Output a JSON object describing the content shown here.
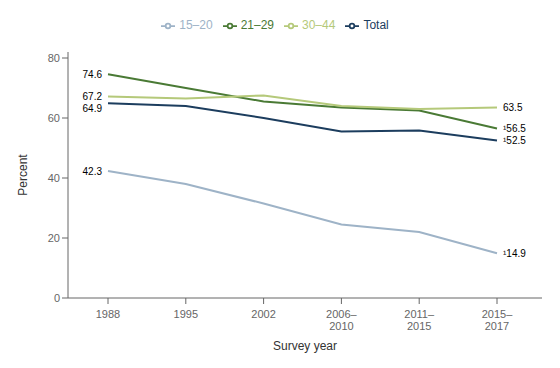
{
  "chart_data": {
    "type": "line",
    "categories": [
      "1988",
      "1995",
      "2002",
      "2006–\n2010",
      "2011–\n2015",
      "2015–\n2017"
    ],
    "series": [
      {
        "name": "Total",
        "color": "#1c3d5e",
        "values": [
          64.9,
          64.0,
          60.0,
          55.5,
          55.8,
          52.5
        ]
      },
      {
        "name": "15–20",
        "color": "#9eb3c7",
        "values": [
          42.3,
          38.0,
          31.5,
          24.5,
          22.0,
          14.9
        ]
      },
      {
        "name": "21–29",
        "color": "#4a7a35",
        "values": [
          74.6,
          70.0,
          65.5,
          63.5,
          62.5,
          56.5
        ]
      },
      {
        "name": "30–44",
        "color": "#b5c97a",
        "values": [
          67.2,
          66.5,
          67.5,
          64.0,
          63.0,
          63.5
        ]
      }
    ],
    "xlabel": "Survey year",
    "ylabel": "Percent",
    "ylim": [
      0,
      82
    ],
    "yticks": [
      0,
      20,
      40,
      60,
      80
    ],
    "grid": false,
    "legend": "top",
    "annotations": [
      {
        "text": "74.6",
        "x": "1988",
        "y": 74.6
      },
      {
        "text": "67.2",
        "x": "1988",
        "y": 67.2
      },
      {
        "text": "64.9",
        "x": "1988",
        "y": 64.9
      },
      {
        "text": "42.3",
        "x": "1988",
        "y": 42.3
      },
      {
        "text": "63.5",
        "x": "2015–\n2017",
        "y": 63.5
      },
      {
        "text": "¹56.5",
        "x": "2015–\n2017",
        "y": 56.5
      },
      {
        "text": "¹52.5",
        "x": "2015–\n2017",
        "y": 52.5
      },
      {
        "text": "¹14.9",
        "x": "2015–\n2017",
        "y": 14.9
      }
    ]
  }
}
